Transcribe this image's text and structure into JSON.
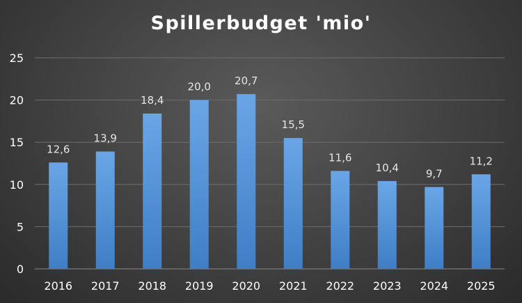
{
  "chart_data": {
    "type": "bar",
    "title": "Spillerbudget 'mio'",
    "categories": [
      "2016",
      "2017",
      "2018",
      "2019",
      "2020",
      "2021",
      "2022",
      "2023",
      "2024",
      "2025"
    ],
    "values": [
      12.6,
      13.9,
      18.4,
      20.0,
      20.7,
      15.5,
      11.6,
      10.4,
      9.7,
      11.2
    ],
    "data_labels": [
      "12,6",
      "13,9",
      "18,4",
      "20,0",
      "20,7",
      "15,5",
      "11,6",
      "10,4",
      "9,7",
      "11,2"
    ],
    "ylim": [
      0,
      25
    ],
    "yticks": [
      "0",
      "5",
      "10",
      "15",
      "20",
      "25"
    ],
    "xlabel": "",
    "ylabel": "",
    "grid": true,
    "legend": "none",
    "bar_color_top": "#6aa6e6",
    "bar_color_bottom": "#3f7ec6"
  }
}
